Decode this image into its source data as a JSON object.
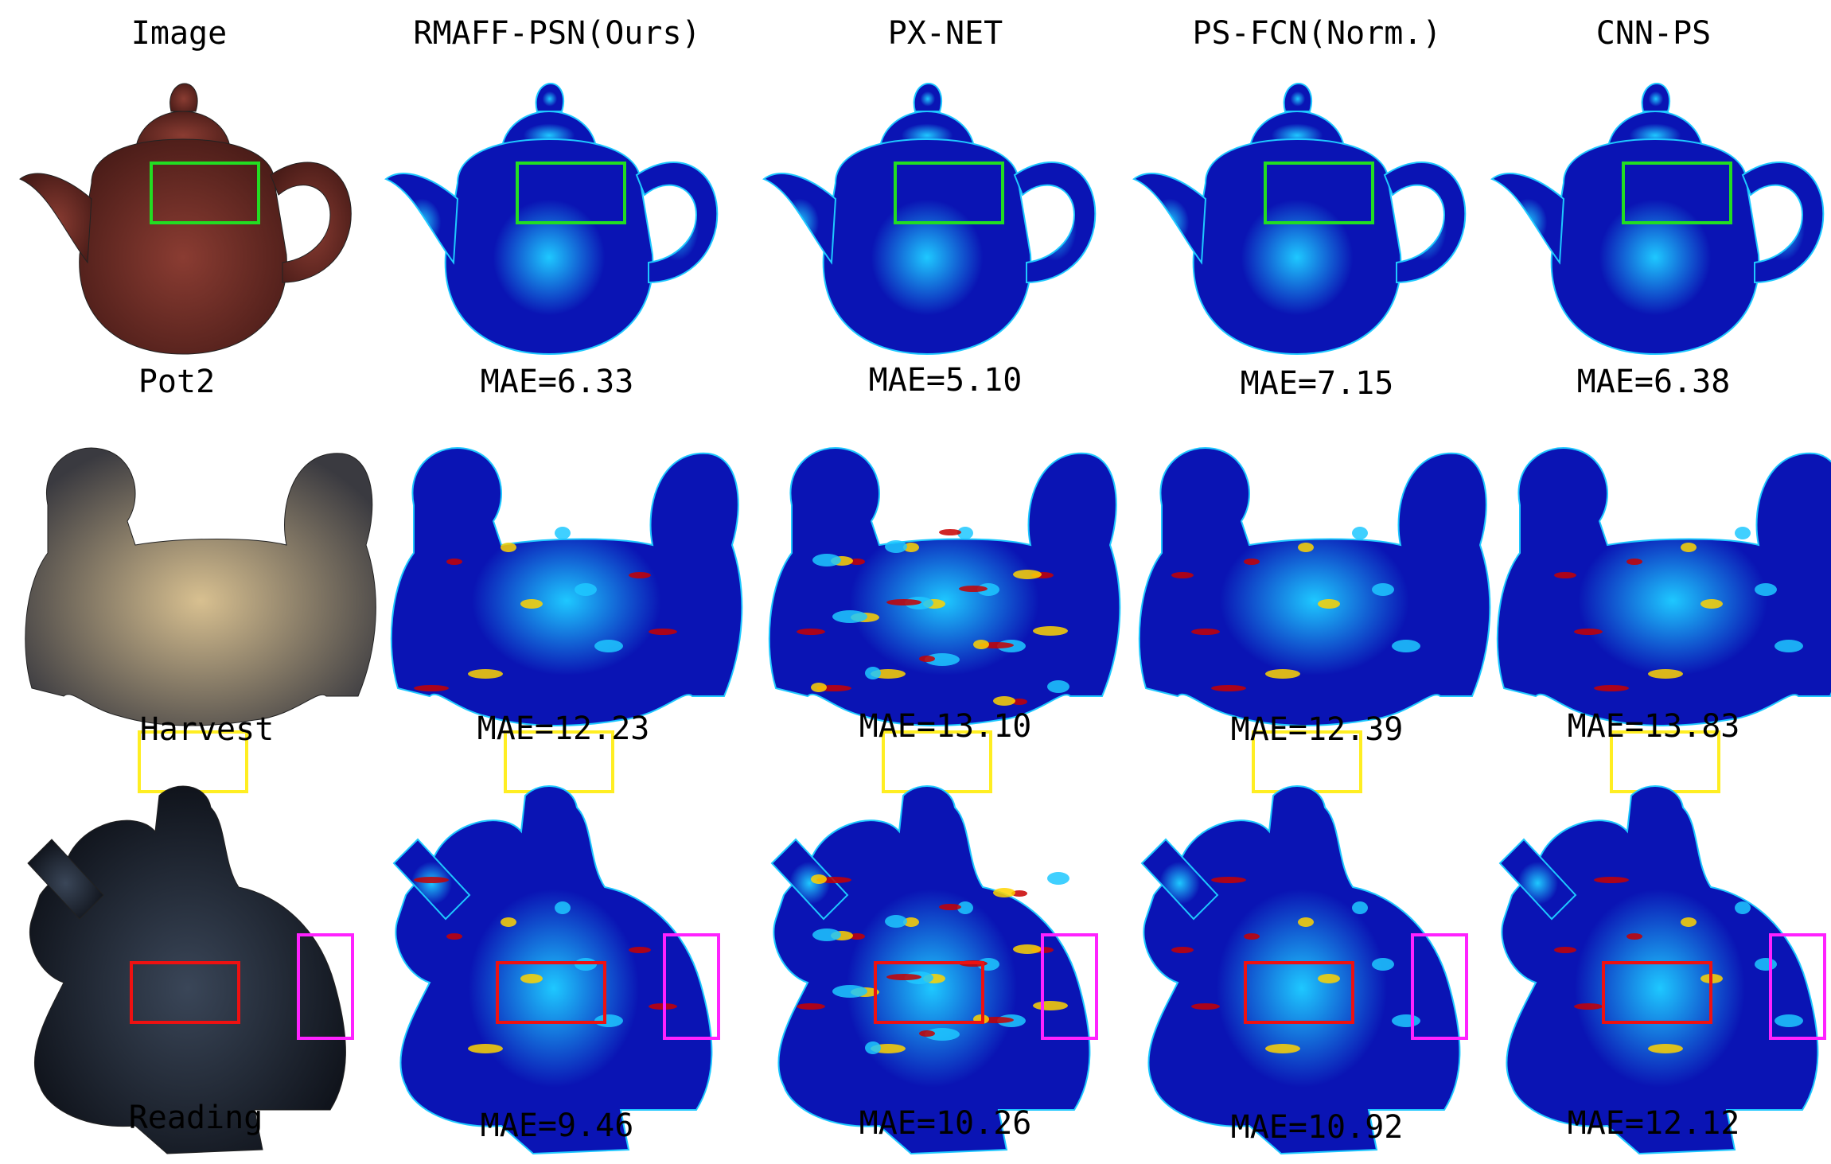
{
  "columns": [
    {
      "title": "Image"
    },
    {
      "title": "RMAFF-PSN(Ours)"
    },
    {
      "title": "PX-NET"
    },
    {
      "title": "PS-FCN(Norm.)"
    },
    {
      "title": "CNN-PS"
    }
  ],
  "rows": [
    {
      "name": "Pot2",
      "object": "teapot",
      "mae": [
        "MAE=6.33",
        "MAE=5.10",
        "MAE=7.15",
        "MAE=6.38"
      ],
      "highlight_colors": [
        "#22dd22"
      ]
    },
    {
      "name": "Harvest",
      "object": "harvest-figurines",
      "mae": [
        "MAE=12.23",
        "MAE=13.10",
        "MAE=12.39",
        "MAE=13.83"
      ],
      "highlight_colors": [
        "#ffee22"
      ]
    },
    {
      "name": "Reading",
      "object": "reading-figurine",
      "mae": [
        "MAE=9.46",
        "MAE=10.26",
        "MAE=10.92",
        "MAE=12.12"
      ],
      "highlight_colors": [
        "#ee1111",
        "#ff22ff"
      ]
    }
  ],
  "colormap": {
    "low": "#0a14b4",
    "mid": "#1ec8ff",
    "high": "#c80000"
  }
}
